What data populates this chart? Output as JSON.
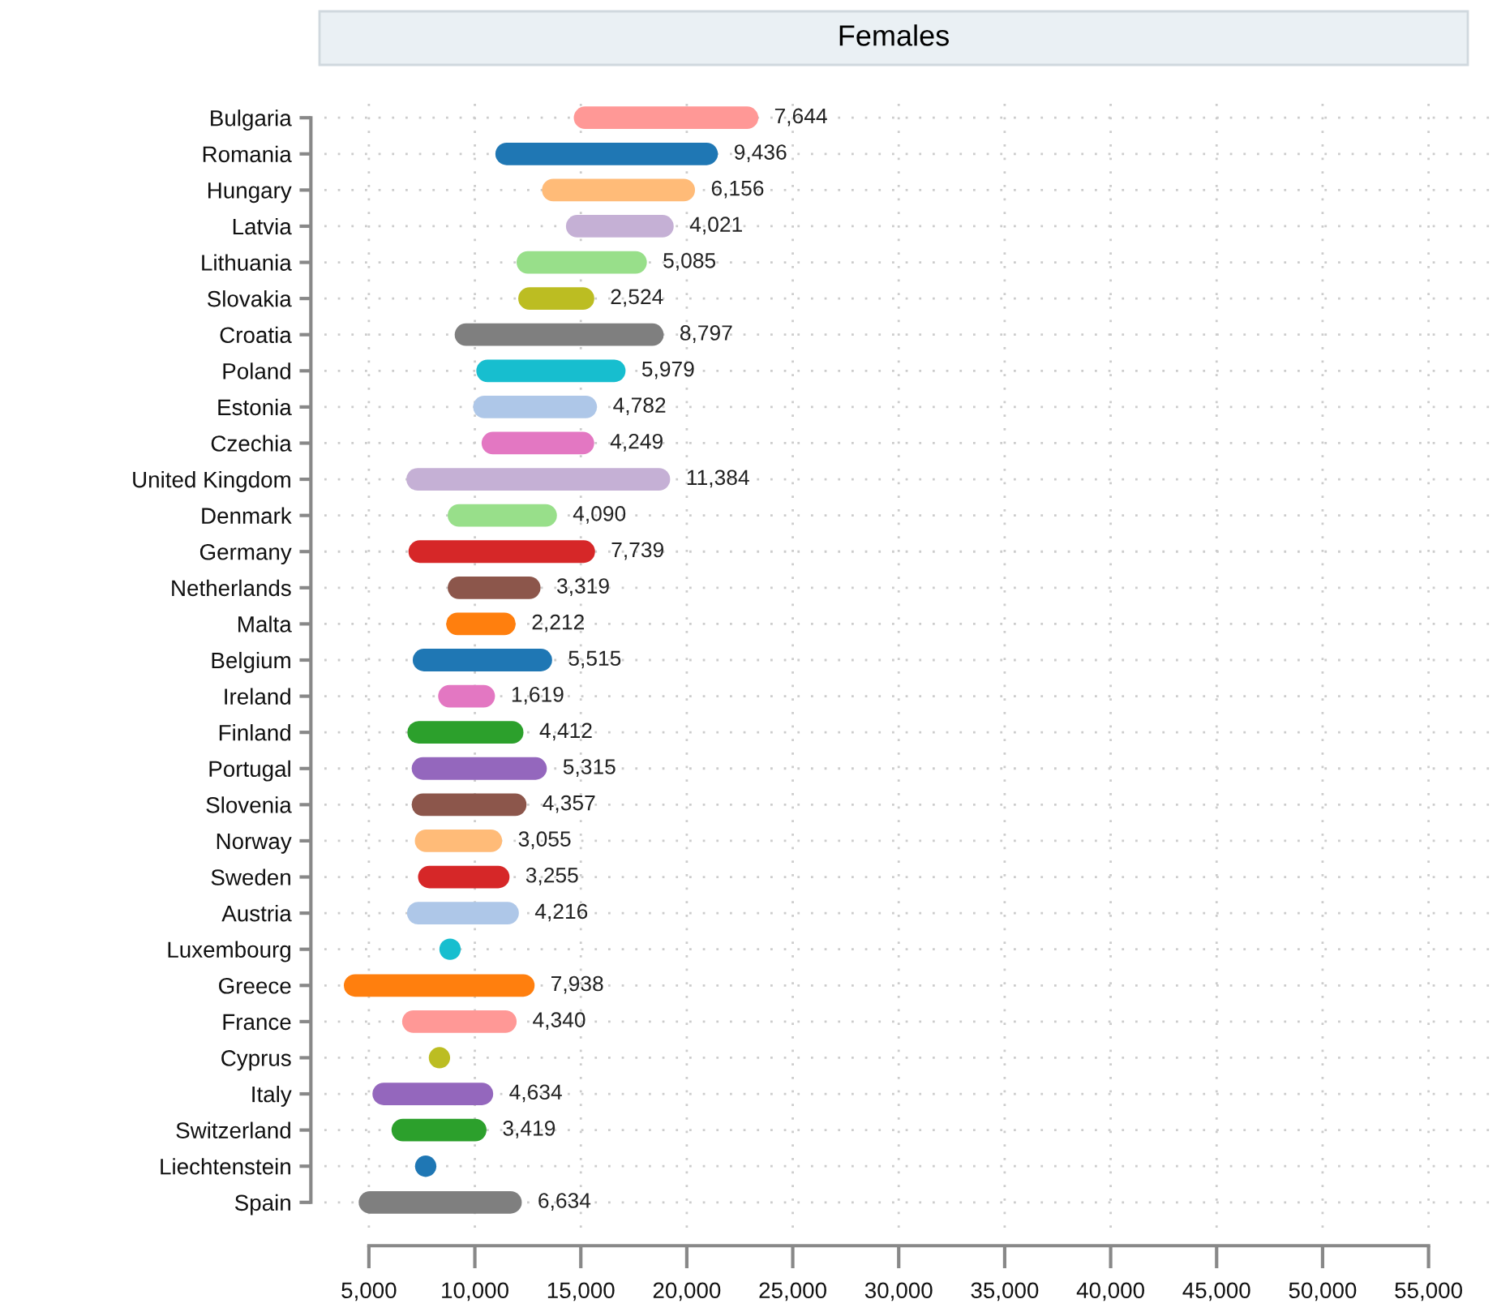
{
  "chart_data": {
    "type": "bar",
    "orientation": "horizontal",
    "title": "Females",
    "categories": [
      "Bulgaria",
      "Romania",
      "Hungary",
      "Latvia",
      "Lithuania",
      "Slovakia",
      "Croatia",
      "Poland",
      "Estonia",
      "Czechia",
      "United Kingdom",
      "Denmark",
      "Germany",
      "Netherlands",
      "Malta",
      "Belgium",
      "Ireland",
      "Finland",
      "Portugal",
      "Slovenia",
      "Norway",
      "Sweden",
      "Austria",
      "Luxembourg",
      "Greece",
      "France",
      "Cyprus",
      "Italy",
      "Switzerland",
      "Liechtenstein",
      "Spain"
    ],
    "series": [
      {
        "base": [
          15200,
          11500,
          13700,
          14830,
          12500,
          12580,
          9580,
          10600,
          10450,
          10850,
          7300,
          9250,
          7400,
          9250,
          9180,
          7600,
          8800,
          7350,
          7550,
          7550,
          7700,
          7850,
          7330,
          null,
          4350,
          7100,
          null,
          5700,
          6600,
          null,
          5050
        ],
        "values": [
          7644,
          9436,
          6156,
          4021,
          5085,
          2524,
          8797,
          5979,
          4782,
          4249,
          11384,
          4090,
          7739,
          3319,
          2212,
          5515,
          1619,
          4412,
          5315,
          4357,
          3055,
          3255,
          4216,
          null,
          7938,
          4340,
          null,
          4634,
          3419,
          null,
          6634
        ],
        "value_labels": [
          "7,644",
          "9,436",
          "6,156",
          "4,021",
          "5,085",
          "2,524",
          "8,797",
          "5,979",
          "4,782",
          "4,249",
          "11,384",
          "4,090",
          "7,739",
          "3,319",
          "2,212",
          "5,515",
          "1,619",
          "4,412",
          "5,315",
          "4,357",
          "3,055",
          "3,255",
          "4,216",
          null,
          "7,938",
          "4,340",
          null,
          "4,634",
          "3,419",
          null,
          "6,634"
        ],
        "colors": [
          "#ff9896",
          "#1f77b4",
          "#ffbb78",
          "#c5b0d5",
          "#98df8a",
          "#bcbd22",
          "#7f7f7f",
          "#17becf",
          "#aec7e8",
          "#e377c2",
          "#c5b0d5",
          "#98df8a",
          "#d62728",
          "#8c564b",
          "#ff7f0e",
          "#1f77b4",
          "#e377c2",
          "#2ca02c",
          "#9467bd",
          "#8c564b",
          "#ffbb78",
          "#d62728",
          "#aec7e8",
          null,
          "#ff7f0e",
          "#ff9896",
          null,
          "#9467bd",
          "#2ca02c",
          null,
          "#7f7f7f"
        ]
      },
      {
        "type": "scatter",
        "values": [
          null,
          null,
          null,
          null,
          null,
          null,
          null,
          null,
          null,
          null,
          null,
          null,
          null,
          null,
          null,
          null,
          null,
          null,
          null,
          null,
          null,
          null,
          null,
          8830,
          null,
          null,
          8330,
          null,
          null,
          7680,
          null
        ],
        "colors": [
          null,
          null,
          null,
          null,
          null,
          null,
          null,
          null,
          null,
          null,
          null,
          null,
          null,
          null,
          null,
          null,
          null,
          null,
          null,
          null,
          null,
          null,
          null,
          "#17becf",
          null,
          null,
          "#bcbd22",
          null,
          null,
          "#1f77b4",
          null
        ]
      }
    ],
    "xlim": [
      2900,
      58000
    ],
    "xticks": [
      {
        "value": 5000,
        "label": "5,000"
      },
      {
        "value": 10000,
        "label": "10,000"
      },
      {
        "value": 15000,
        "label": "15,000"
      },
      {
        "value": 20000,
        "label": "20,000"
      },
      {
        "value": 25000,
        "label": "25,000"
      },
      {
        "value": 30000,
        "label": "30,000"
      },
      {
        "value": 35000,
        "label": "35,000"
      },
      {
        "value": 40000,
        "label": "40,000"
      },
      {
        "value": 45000,
        "label": "45,000"
      },
      {
        "value": 50000,
        "label": "50,000"
      },
      {
        "value": 55000,
        "label": "55,000"
      }
    ],
    "grid": true
  }
}
